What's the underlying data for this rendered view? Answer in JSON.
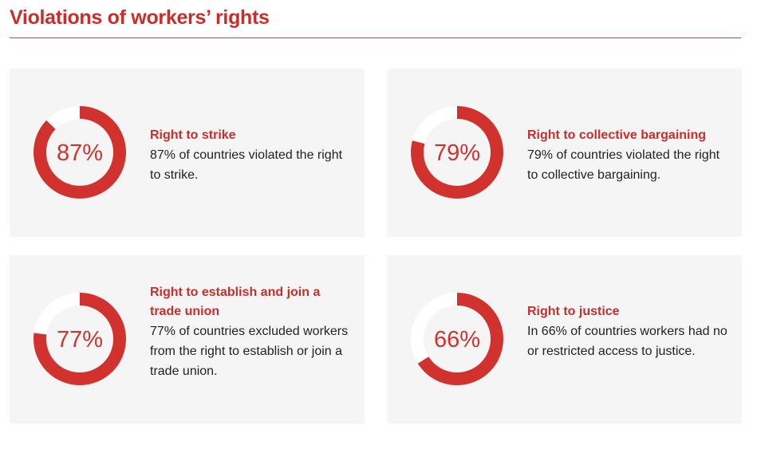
{
  "title": "Violations of workers’ rights",
  "colors": {
    "accent": "#d2322e",
    "track": "#ffffff",
    "card": "#f5f5f5"
  },
  "chart_data": {
    "type": "pie",
    "variant": "donut",
    "items": [
      {
        "label": "87%",
        "value": 87,
        "heading": "Right to strike",
        "description": "87% of countries violated the right to strike."
      },
      {
        "label": "79%",
        "value": 79,
        "heading": "Right to collective bargaining",
        "description": "79% of countries violated the right to collective bargaining."
      },
      {
        "label": "77%",
        "value": 77,
        "heading": "Right to establish and join a trade union",
        "description": "77% of countries excluded workers from the right to establish or join a trade union."
      },
      {
        "label": "66%",
        "value": 66,
        "heading": "Right to justice",
        "description": "In 66% of countries workers had no or restricted access to justice."
      }
    ]
  }
}
